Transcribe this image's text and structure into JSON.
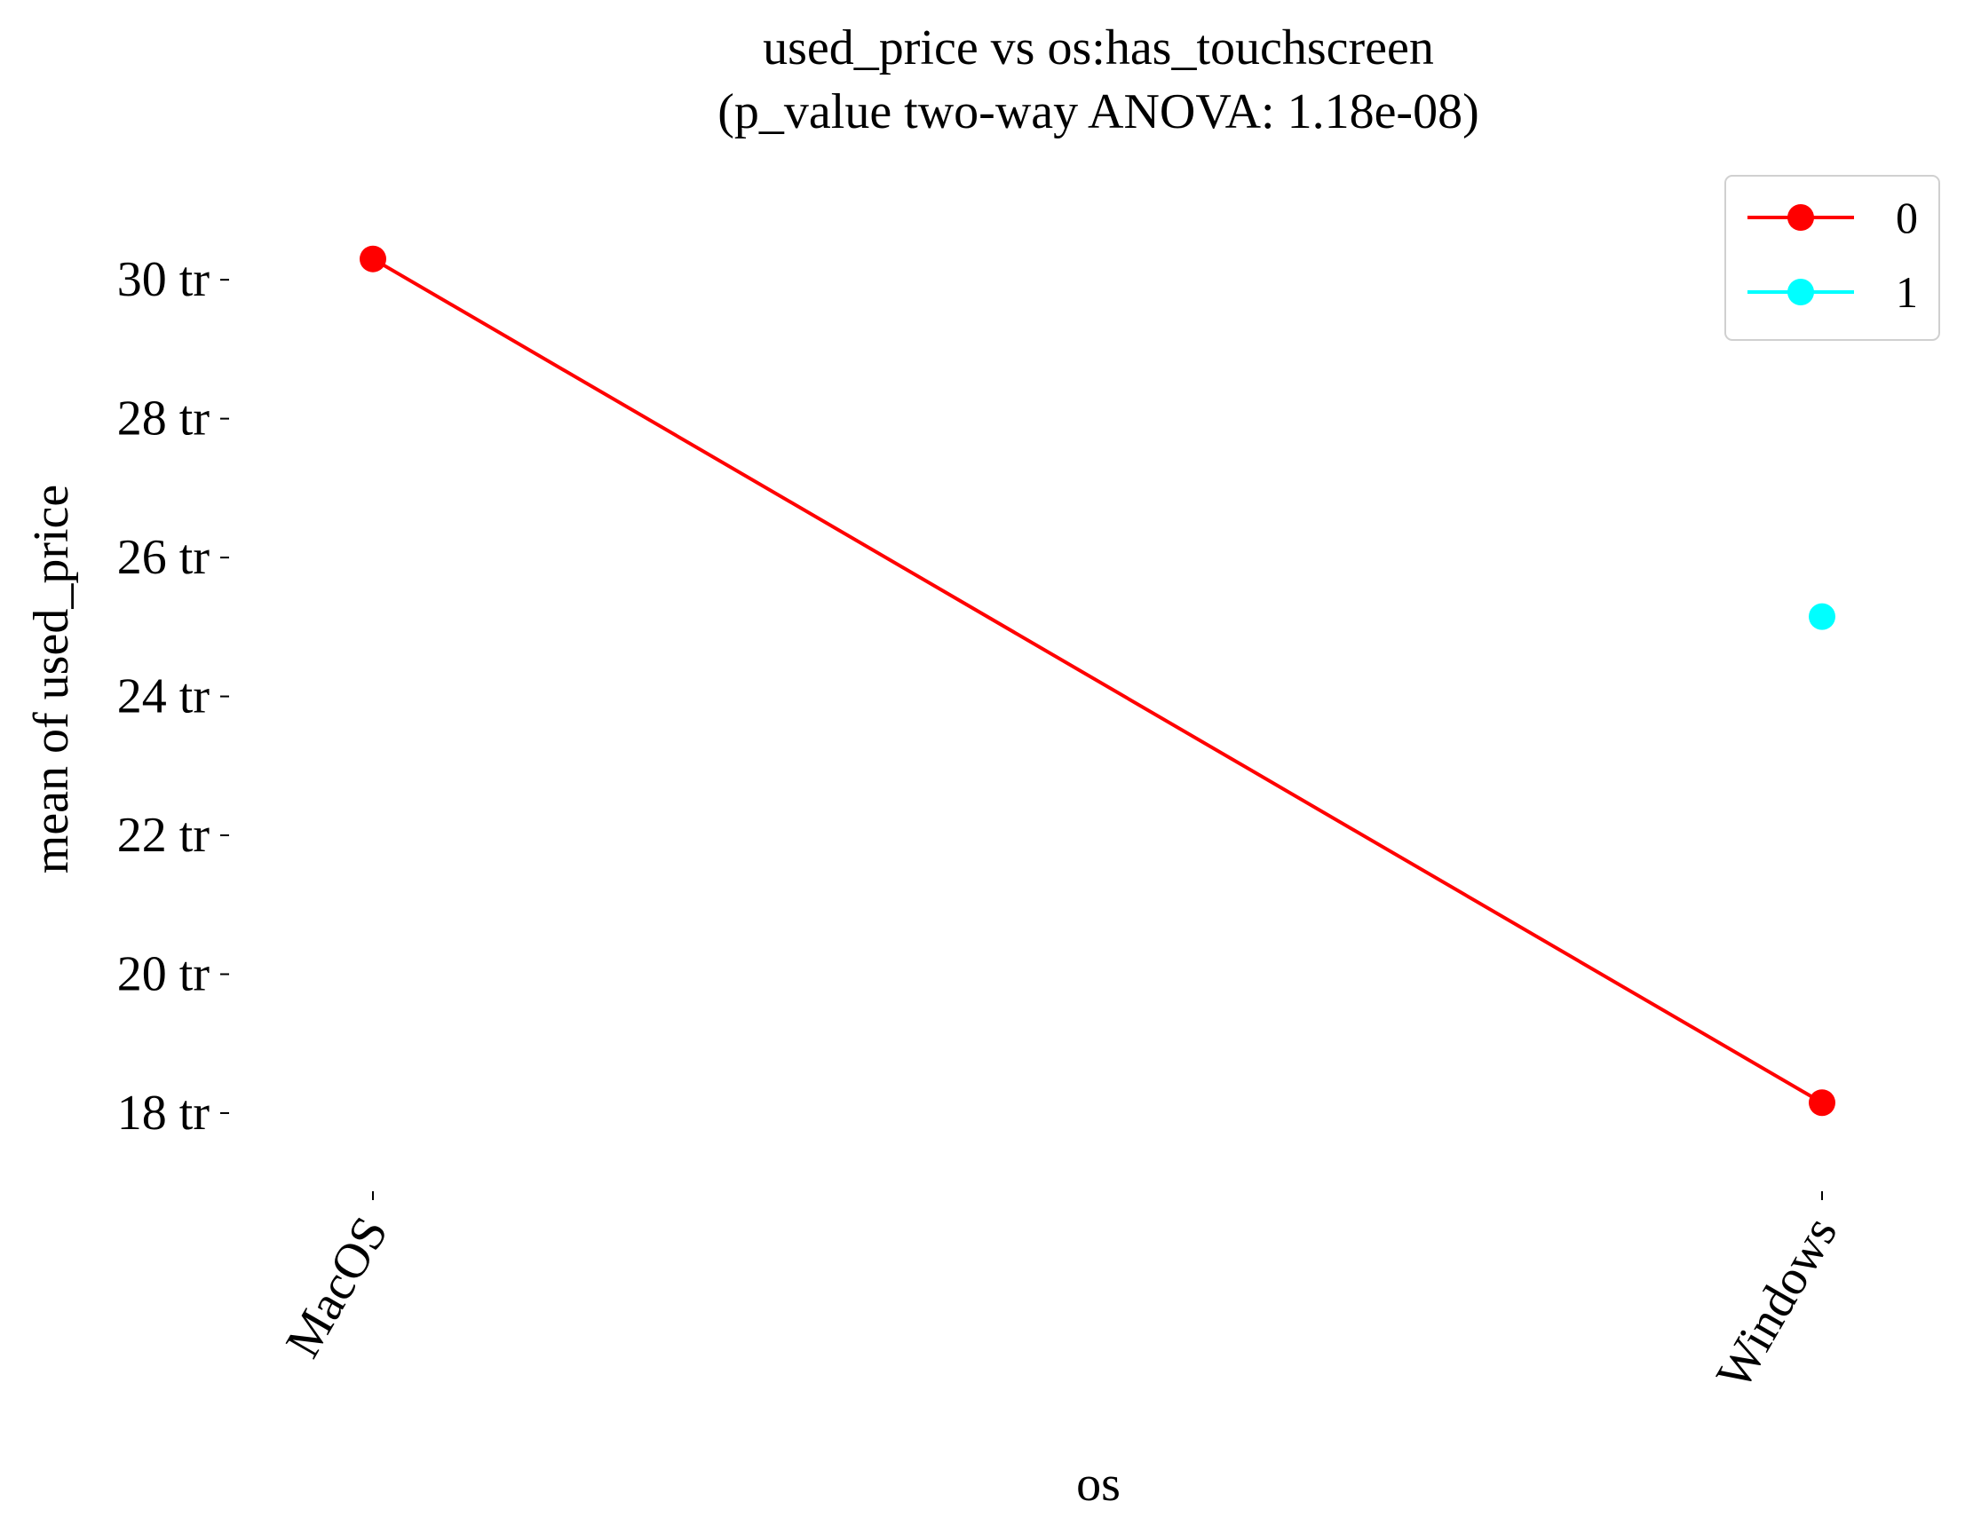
{
  "chart_data": {
    "type": "line",
    "title": "used_price vs os:has_touchscreen",
    "subtitle": "(p_value two-way ANOVA: 1.18e-08)",
    "xlabel": "os",
    "ylabel": "mean of used_price",
    "categories": [
      "MacOS",
      "Windows"
    ],
    "y_ticks": [
      18,
      20,
      22,
      24,
      26,
      28,
      30
    ],
    "y_tick_labels": [
      "18 tr",
      "20 tr",
      "22 tr",
      "24 tr",
      "26 tr",
      "28 tr",
      "30 tr"
    ],
    "ylim": [
      16.9,
      31.6
    ],
    "grid": false,
    "legend_position": "top-right",
    "series": [
      {
        "name": "0",
        "color": "#ff0000",
        "values": [
          30.3,
          18.15
        ]
      },
      {
        "name": "1",
        "color": "#00ffff",
        "values": [
          null,
          25.15
        ]
      }
    ]
  }
}
